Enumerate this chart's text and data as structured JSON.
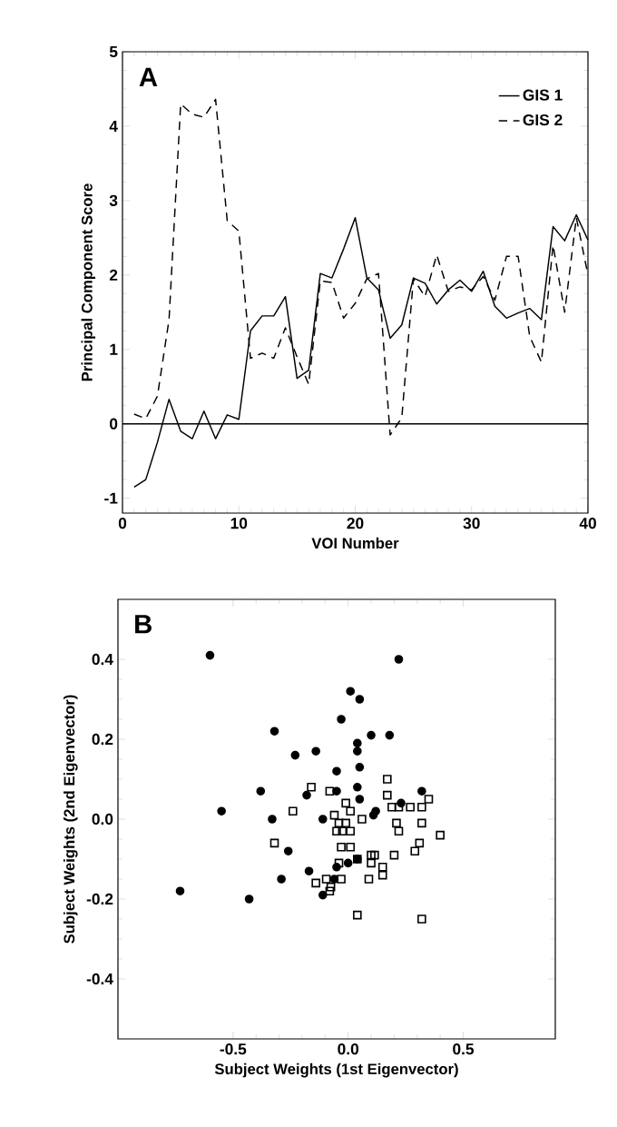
{
  "chart_data": [
    {
      "type": "line",
      "xlabel": "VOI Number",
      "ylabel": "Principal Component Score",
      "annotations": [
        "A"
      ],
      "x": [
        1,
        2,
        3,
        4,
        5,
        6,
        7,
        8,
        9,
        10,
        11,
        12,
        13,
        14,
        15,
        16,
        17,
        18,
        19,
        20,
        21,
        22,
        23,
        24,
        25,
        26,
        27,
        28,
        29,
        30,
        31,
        32,
        33,
        34,
        35,
        36,
        37,
        38,
        39,
        40
      ],
      "series": [
        {
          "name": "GIS 1",
          "color": "#000000",
          "line_style": "solid",
          "values": [
            -0.85,
            -0.75,
            -0.25,
            0.33,
            -0.1,
            -0.2,
            0.17,
            -0.2,
            0.12,
            0.06,
            1.25,
            1.45,
            1.45,
            1.71,
            0.61,
            0.72,
            2.02,
            1.96,
            2.35,
            2.77,
            1.96,
            1.8,
            1.15,
            1.33,
            1.96,
            1.89,
            1.61,
            1.8,
            1.93,
            1.78,
            2.05,
            1.58,
            1.42,
            1.49,
            1.55,
            1.4,
            2.65,
            2.46,
            2.81,
            2.47
          ]
        },
        {
          "name": "GIS 2",
          "color": "#000000",
          "line_style": "dashed",
          "values": [
            0.13,
            0.07,
            0.37,
            1.4,
            4.3,
            4.16,
            4.12,
            4.36,
            2.73,
            2.59,
            0.88,
            0.95,
            0.88,
            1.29,
            0.9,
            0.53,
            1.92,
            1.9,
            1.42,
            1.62,
            1.95,
            2.02,
            -0.15,
            0.08,
            1.95,
            1.71,
            2.27,
            1.78,
            1.84,
            1.8,
            1.98,
            1.66,
            2.25,
            2.25,
            1.17,
            0.83,
            2.4,
            1.5,
            2.77,
            2.0
          ]
        }
      ],
      "xlim": [
        0,
        40
      ],
      "xticks": [
        0,
        10,
        20,
        30,
        40
      ],
      "ylim": [
        -1.2,
        5
      ],
      "yticks": [
        -1,
        0,
        1,
        2,
        3,
        4,
        5
      ],
      "ref_lines": [
        {
          "axis": "y",
          "value": 0,
          "color": "#000000",
          "line_style": "solid"
        }
      ],
      "legend": "top right",
      "grid": false,
      "marker": "none"
    },
    {
      "type": "scatter",
      "xlabel": "Subject Weights (1st Eigenvector)",
      "ylabel": "Subject Weights (2nd Eigenvector)",
      "annotations": [
        "B"
      ],
      "series": [
        {
          "color": "#000000",
          "marker": "circle",
          "x": [
            -0.6,
            0.01,
            0.05,
            -0.03,
            -0.32,
            -0.23,
            -0.14,
            0.04,
            0.04,
            -0.05,
            0.05,
            -0.38,
            -0.18,
            -0.05,
            0.04,
            0.05,
            -0.55,
            -0.33,
            -0.11,
            -0.26,
            -0.29,
            -0.17,
            -0.11,
            -0.73,
            -0.43,
            0.04,
            -0.05,
            0.0,
            0.1,
            0.18,
            0.23,
            0.32,
            0.12,
            0.11,
            -0.06,
            0.22
          ],
          "values": [
            0.41,
            0.32,
            0.3,
            0.25,
            0.22,
            0.16,
            0.17,
            0.19,
            0.17,
            0.12,
            0.13,
            0.07,
            0.06,
            0.07,
            0.08,
            0.05,
            0.02,
            0.0,
            0.0,
            -0.08,
            -0.15,
            -0.13,
            -0.19,
            -0.18,
            -0.2,
            -0.1,
            -0.12,
            -0.11,
            0.21,
            0.21,
            0.04,
            0.07,
            0.02,
            0.01,
            -0.15,
            0.4
          ]
        },
        {
          "color": "#000000",
          "marker": "square",
          "x": [
            -0.16,
            -0.08,
            -0.01,
            0.01,
            -0.24,
            -0.06,
            -0.04,
            -0.01,
            -0.05,
            -0.025,
            0.01,
            0.06,
            -0.32,
            -0.03,
            0.01,
            -0.04,
            0.04,
            -0.095,
            -0.03,
            -0.14,
            -0.075,
            -0.08,
            0.04,
            0.17,
            0.17,
            0.35,
            0.19,
            0.22,
            0.27,
            0.32,
            0.21,
            0.22,
            0.32,
            0.4,
            0.31,
            0.29,
            0.2,
            0.115,
            0.1,
            0.1,
            0.15,
            0.15,
            0.09,
            0.32
          ],
          "values": [
            0.08,
            0.07,
            0.04,
            0.02,
            0.02,
            0.01,
            -0.01,
            -0.01,
            -0.03,
            -0.03,
            -0.03,
            0.0,
            -0.06,
            -0.07,
            -0.07,
            -0.11,
            -0.1,
            -0.15,
            -0.15,
            -0.16,
            -0.17,
            -0.18,
            -0.24,
            0.1,
            0.06,
            0.05,
            0.03,
            0.03,
            0.03,
            0.03,
            -0.01,
            -0.03,
            -0.01,
            -0.04,
            -0.06,
            -0.08,
            -0.09,
            -0.09,
            -0.09,
            -0.11,
            -0.12,
            -0.14,
            -0.15,
            -0.25
          ]
        }
      ],
      "xlim": [
        -1.0,
        0.9
      ],
      "xticks": [
        -0.5,
        {
          "value": 0,
          "label": "0.0"
        },
        0.5
      ],
      "ylim": [
        -0.55,
        0.55
      ],
      "yticks": [
        -0.4,
        -0.2,
        {
          "value": 0,
          "label": "0.0"
        },
        0.2,
        0.4
      ],
      "legend": false,
      "grid": false
    }
  ]
}
